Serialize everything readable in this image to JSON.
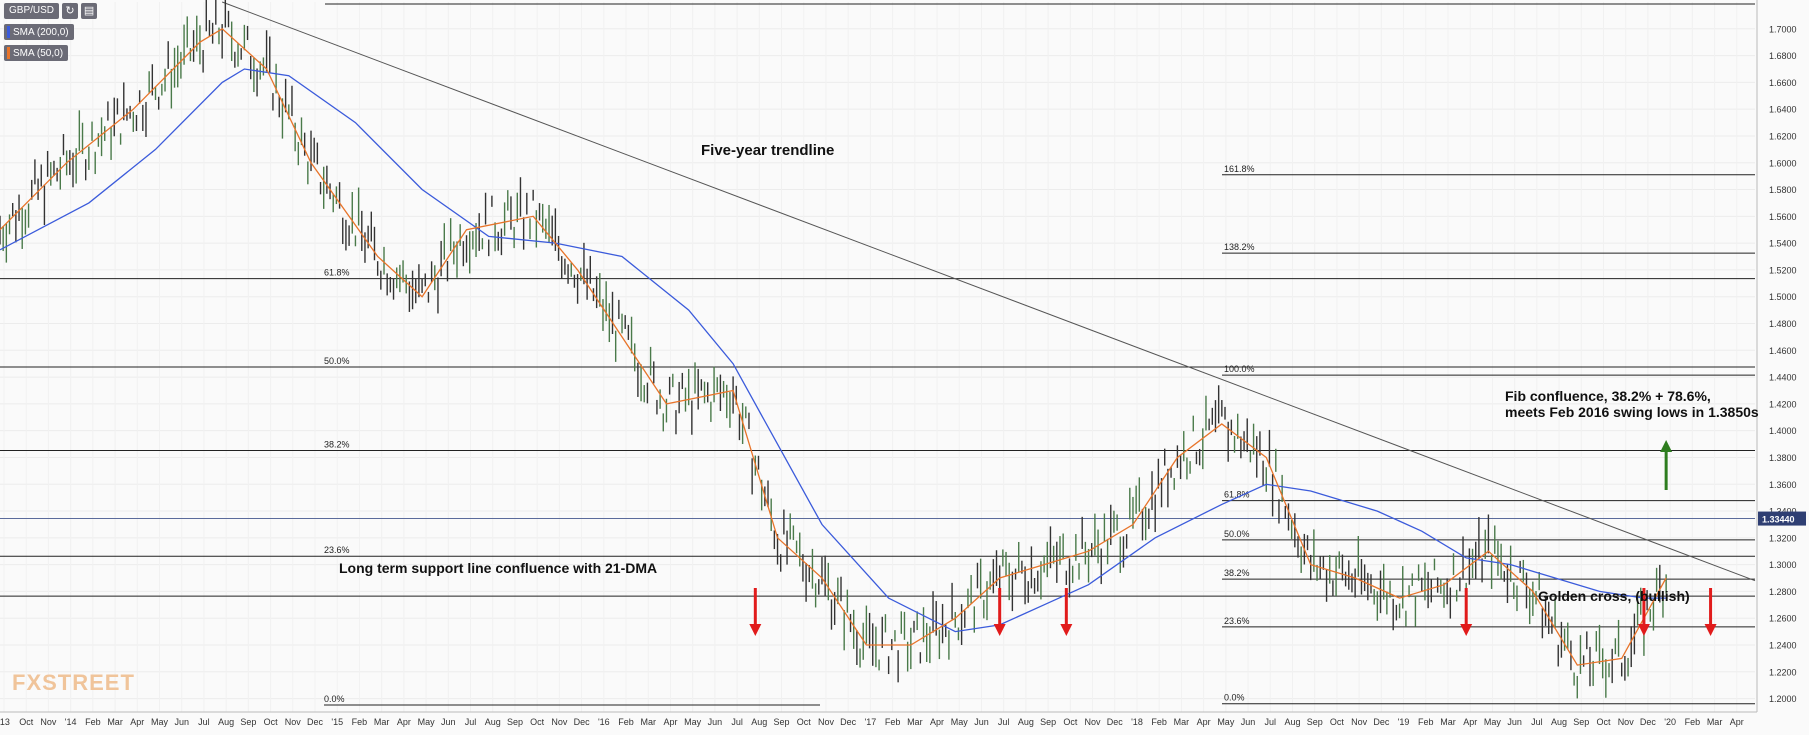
{
  "header": {
    "symbol": "GBP/USD",
    "sma200_label": "SMA (200,0)",
    "sma50_label": "SMA (50,0)",
    "sma200_color": "#3b5bdb",
    "sma50_color": "#e8742a"
  },
  "watermark": "FXSTREET",
  "annotations": {
    "trendline": "Five-year trendline",
    "support": "Long term support line confluence with 21-DMA",
    "fib_line1": "Fib confluence, 38.2% + 78.6%,",
    "fib_line2": "meets Feb 2016 swing lows in 1.3850s",
    "golden_cross": "Golden cross, (bullish)"
  },
  "price_tag": "1.33440",
  "colors": {
    "up_arrow": "#2e7d1f",
    "down_arrow": "#e11b1b",
    "price_tag_bg": "#2f3f73"
  },
  "chart_data": {
    "type": "line",
    "title": "GBP/USD",
    "ylim": [
      1.19,
      1.72
    ],
    "y_ticks": [
      "1.7000",
      "1.6800",
      "1.6600",
      "1.6400",
      "1.6200",
      "1.6000",
      "1.5800",
      "1.5600",
      "1.5400",
      "1.5200",
      "1.5000",
      "1.4800",
      "1.4600",
      "1.4400",
      "1.4200",
      "1.4000",
      "1.3800",
      "1.3600",
      "1.3400",
      "1.3200",
      "1.3000",
      "1.2800",
      "1.2600",
      "1.2400",
      "1.2200",
      "1.2000"
    ],
    "x_ticks": [
      "'13",
      "Oct",
      "Nov",
      "'14",
      "Feb",
      "Mar",
      "Apr",
      "May",
      "Jun",
      "Jul",
      "Aug",
      "Sep",
      "Oct",
      "Nov",
      "Dec",
      "'15",
      "Feb",
      "Mar",
      "Apr",
      "May",
      "Jun",
      "Jul",
      "Aug",
      "Sep",
      "Oct",
      "Nov",
      "Dec",
      "'16",
      "Feb",
      "Mar",
      "Apr",
      "May",
      "Jun",
      "Jul",
      "Aug",
      "Sep",
      "Oct",
      "Nov",
      "Dec",
      "'17",
      "Feb",
      "Mar",
      "Apr",
      "May",
      "Jun",
      "Jul",
      "Aug",
      "Sep",
      "Oct",
      "Nov",
      "Dec",
      "'18",
      "Feb",
      "Mar",
      "Apr",
      "May",
      "Jun",
      "Jul",
      "Aug",
      "Sep",
      "Oct",
      "Nov",
      "Dec",
      "'19",
      "Feb",
      "Mar",
      "Apr",
      "May",
      "Jun",
      "Jul",
      "Aug",
      "Sep",
      "Oct",
      "Nov",
      "Dec",
      "'20",
      "Feb",
      "Mar",
      "Apr"
    ],
    "x_range": [
      "2013-09",
      "2020-04"
    ],
    "current_price": 1.3344,
    "series": [
      {
        "name": "SMA (200,0)",
        "color": "#3b5bdb",
        "x": [
          "2013-09",
          "2014-01",
          "2014-04",
          "2014-07",
          "2014-08",
          "2014-10",
          "2015-01",
          "2015-04",
          "2015-07",
          "2015-10",
          "2016-01",
          "2016-04",
          "2016-06",
          "2016-08",
          "2016-10",
          "2017-01",
          "2017-04",
          "2017-06",
          "2017-08",
          "2017-10",
          "2018-01",
          "2018-04",
          "2018-06",
          "2018-08",
          "2018-11",
          "2019-01",
          "2019-03",
          "2019-05",
          "2019-07",
          "2019-09",
          "2019-11",
          "2019-12"
        ],
        "values": [
          1.535,
          1.57,
          1.61,
          1.66,
          1.67,
          1.665,
          1.63,
          1.58,
          1.545,
          1.54,
          1.53,
          1.49,
          1.45,
          1.39,
          1.33,
          1.275,
          1.25,
          1.255,
          1.27,
          1.285,
          1.32,
          1.345,
          1.36,
          1.355,
          1.34,
          1.325,
          1.305,
          1.3,
          1.29,
          1.28,
          1.275,
          1.275
        ]
      },
      {
        "name": "SMA (50,0)",
        "color": "#e8742a",
        "x": [
          "2013-09",
          "2013-12",
          "2014-03",
          "2014-06",
          "2014-07",
          "2014-09",
          "2014-11",
          "2015-02",
          "2015-04",
          "2015-06",
          "2015-09",
          "2015-11",
          "2016-01",
          "2016-03",
          "2016-06",
          "2016-08",
          "2016-10",
          "2016-12",
          "2017-02",
          "2017-04",
          "2017-06",
          "2017-08",
          "2017-10",
          "2017-12",
          "2018-02",
          "2018-04",
          "2018-06",
          "2018-08",
          "2018-10",
          "2018-12",
          "2019-02",
          "2019-04",
          "2019-06",
          "2019-08",
          "2019-10",
          "2019-12"
        ],
        "values": [
          1.55,
          1.6,
          1.64,
          1.69,
          1.7,
          1.67,
          1.6,
          1.53,
          1.5,
          1.55,
          1.56,
          1.52,
          1.47,
          1.42,
          1.43,
          1.32,
          1.29,
          1.24,
          1.24,
          1.26,
          1.29,
          1.3,
          1.31,
          1.33,
          1.38,
          1.405,
          1.38,
          1.3,
          1.29,
          1.275,
          1.285,
          1.31,
          1.28,
          1.225,
          1.23,
          1.29
        ]
      }
    ],
    "trendline": {
      "from": [
        "2014-07",
        1.72
      ],
      "to": [
        "2020-04",
        1.288
      ]
    },
    "horizontal_lines": [
      1.7185,
      1.5135,
      1.4475,
      1.3852,
      1.3344,
      1.3063,
      1.2765
    ],
    "fib_set_1": {
      "labels": [
        "61.8%",
        "50.0%",
        "38.2%",
        "23.6%",
        "0.0%"
      ],
      "levels": [
        1.5135,
        1.4475,
        1.3852,
        1.3063,
        1.1952
      ]
    },
    "fib_set_2": {
      "labels": [
        "161.8%",
        "138.2%",
        "100.0%",
        "61.8%",
        "50.0%",
        "38.2%",
        "23.6%",
        "0.0%"
      ],
      "levels": [
        1.591,
        1.5325,
        1.4415,
        1.3478,
        1.3185,
        1.2892,
        1.2535,
        1.1962
      ]
    },
    "up_arrow_months": [
      "2019-12"
    ],
    "down_arrow_months": [
      "2016-07",
      "2017-06",
      "2017-09",
      "2019-03",
      "2019-11",
      "2020-02"
    ]
  }
}
